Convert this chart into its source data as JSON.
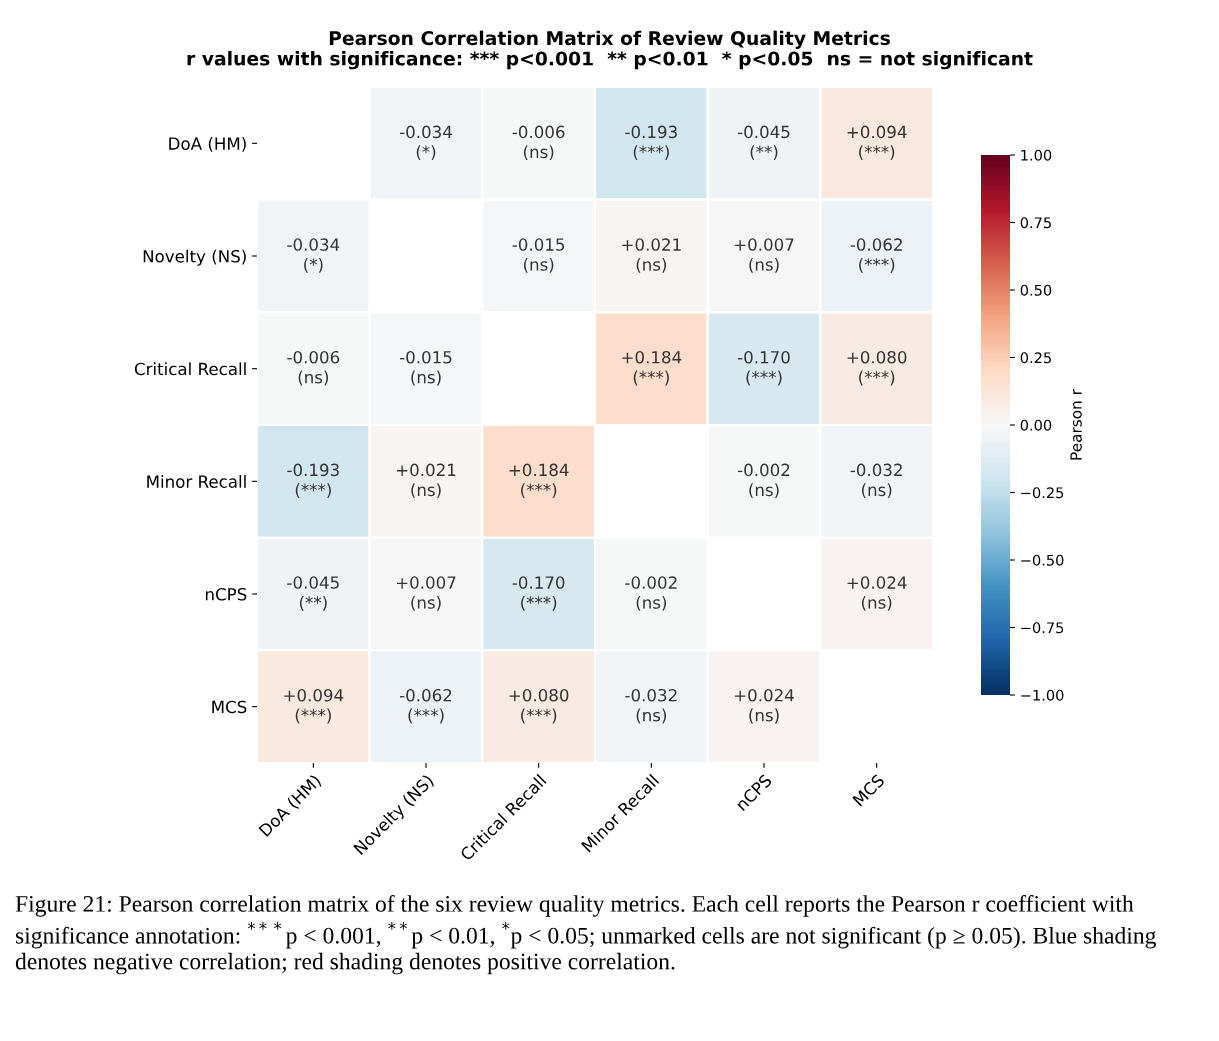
{
  "chart_data": {
    "type": "heatmap",
    "title": "Pearson Correlation Matrix of Review Quality Metrics",
    "subtitle": "r values with significance: *** p<0.001  ** p<0.01  * p<0.05  ns = not significant",
    "categories": [
      "DoA (HM)",
      "Novelty (NS)",
      "Critical Recall",
      "Minor Recall",
      "nCPS",
      "MCS"
    ],
    "y_categories": [
      "DoA (HM)",
      "Novelty (NS)",
      "Critical Recall",
      "Minor Recall",
      "nCPS",
      "MCS"
    ],
    "cells": [
      [
        null,
        -0.034,
        -0.006,
        -0.193,
        -0.045,
        0.094
      ],
      [
        -0.034,
        null,
        -0.015,
        0.021,
        0.007,
        -0.062
      ],
      [
        -0.006,
        -0.015,
        null,
        0.184,
        -0.17,
        0.08
      ],
      [
        -0.193,
        0.021,
        0.184,
        null,
        -0.002,
        -0.032
      ],
      [
        -0.045,
        0.007,
        -0.17,
        -0.002,
        null,
        0.024
      ],
      [
        0.094,
        -0.062,
        0.08,
        -0.032,
        0.024,
        null
      ]
    ],
    "cell_labels": [
      [
        null,
        "-0.034\n(*)",
        "-0.006\n(ns)",
        "-0.193\n(***)",
        "-0.045\n(**)",
        "+0.094\n(***)"
      ],
      [
        "-0.034\n(*)",
        null,
        "-0.015\n(ns)",
        "+0.021\n(ns)",
        "+0.007\n(ns)",
        "-0.062\n(***)"
      ],
      [
        "-0.006\n(ns)",
        "-0.015\n(ns)",
        null,
        "+0.184\n(***)",
        "-0.170\n(***)",
        "+0.080\n(***)"
      ],
      [
        "-0.193\n(***)",
        "+0.021\n(ns)",
        "+0.184\n(***)",
        null,
        "-0.002\n(ns)",
        "-0.032\n(ns)"
      ],
      [
        "-0.045\n(**)",
        "+0.007\n(ns)",
        "-0.170\n(***)",
        "-0.002\n(ns)",
        null,
        "+0.024\n(ns)"
      ],
      [
        "+0.094\n(***)",
        "-0.062\n(***)",
        "+0.080\n(***)",
        "-0.032\n(ns)",
        "+0.024\n(ns)",
        null
      ]
    ],
    "clim": [
      -1,
      1
    ],
    "cticks": [
      {
        "value": -1,
        "label": "−1.00"
      },
      {
        "value": -0.75,
        "label": "−0.75"
      },
      {
        "value": -0.5,
        "label": "−0.50"
      },
      {
        "value": -0.25,
        "label": "−0.25"
      },
      {
        "value": 0,
        "label": "0.00"
      },
      {
        "value": 0.25,
        "label": "0.25"
      },
      {
        "value": 0.5,
        "label": "0.50"
      },
      {
        "value": 0.75,
        "label": "0.75"
      },
      {
        "value": 1,
        "label": "1.00"
      }
    ],
    "clabel": "Pearson r",
    "annotations": [
      "Figure 21: Pearson correlation matrix of the six review quality metrics. Each cell reports the Pearson r coefficient with significance annotation: $^{***}$p < 0.001, $^{**}$p < 0.01, $^{*}$p < 0.05; unmarked cells are not significant (p ≥ 0.05). Blue shading denotes negative correlation; red shading denotes positive correlation."
    ]
  }
}
